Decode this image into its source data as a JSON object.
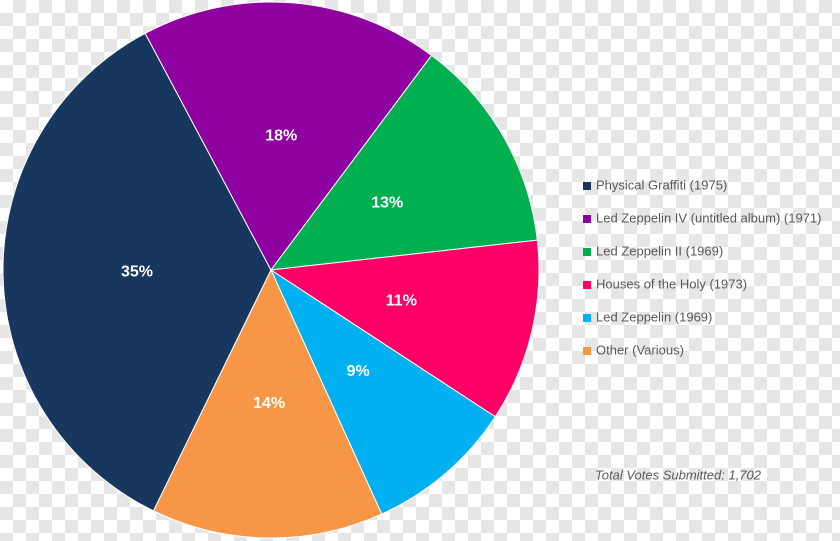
{
  "chart_data": {
    "type": "pie",
    "categories": [
      "Physical Graffiti (1975)",
      "Led Zeppelin IV (untitled album) (1971)",
      "Led Zeppelin II (1969)",
      "Houses of the Holy (1973)",
      "Led Zeppelin (1969)",
      "Other (Various)"
    ],
    "values": [
      35,
      18,
      13,
      11,
      9,
      14
    ],
    "value_labels": [
      "35%",
      "18%",
      "13%",
      "11%",
      "9%",
      "14%"
    ],
    "colors": [
      "#17375e",
      "#8f00a0",
      "#00b050",
      "#ff0066",
      "#00b0f0",
      "#f79646"
    ],
    "legend": "right",
    "annotation": "Total Votes Submitted: 1,702"
  }
}
